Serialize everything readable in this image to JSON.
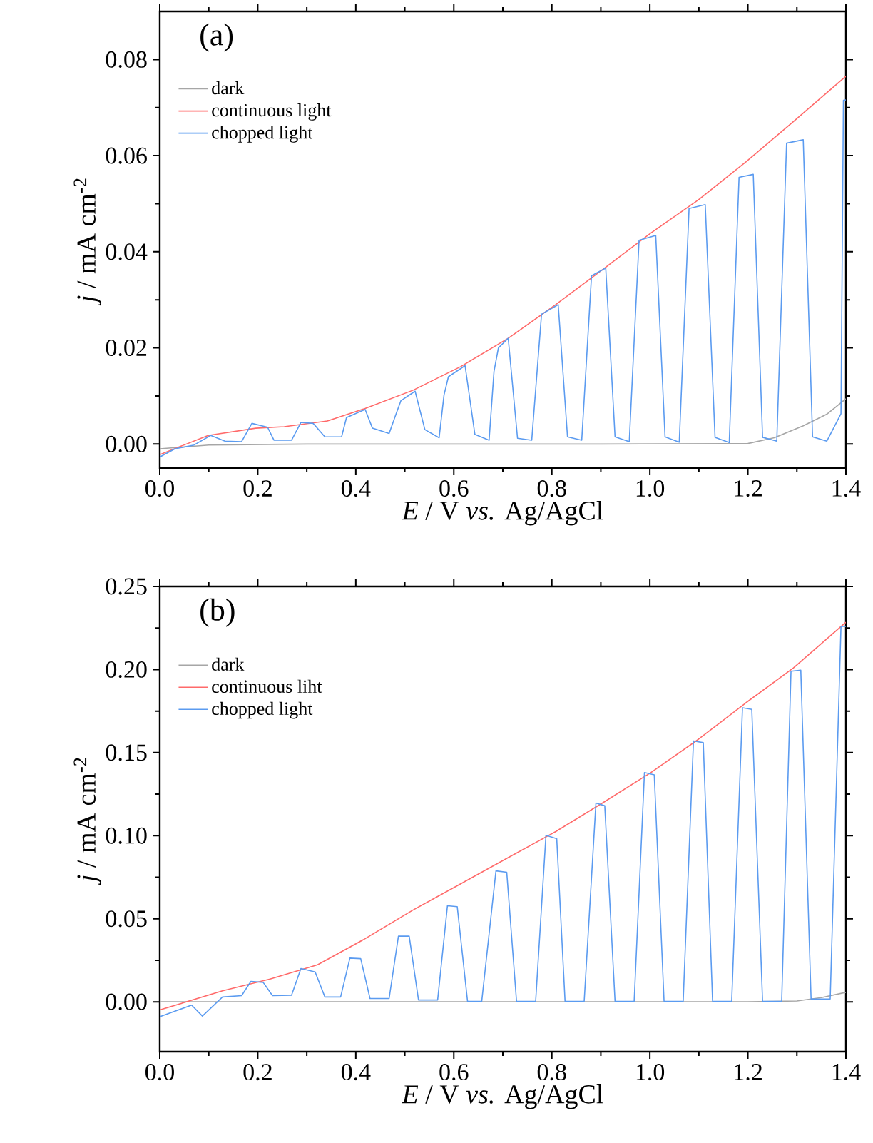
{
  "chart_data": [
    {
      "type": "line",
      "annotations": [
        "(a)"
      ],
      "xlabel": "*E* / V *vs.* Ag/AgCl",
      "ylabel": "*j* / mA cm$^{-2}$",
      "xlim": [
        0,
        1.4
      ],
      "ylim": [
        -0.005,
        0.09
      ],
      "xticks": [
        {
          "value": 0,
          "label": "0.0"
        },
        {
          "value": 0.2,
          "label": "0.2"
        },
        {
          "value": 0.4,
          "label": "0.4"
        },
        {
          "value": 0.6,
          "label": "0.6"
        },
        {
          "value": 0.8,
          "label": "0.8"
        },
        {
          "value": 1.0,
          "label": "1.0"
        },
        {
          "value": 1.2,
          "label": "1.2"
        },
        {
          "value": 1.4,
          "label": "1.4"
        }
      ],
      "yticks": [
        {
          "value": 0,
          "label": "0.00"
        },
        {
          "value": 0.02,
          "label": "0.02"
        },
        {
          "value": 0.04,
          "label": "0.04"
        },
        {
          "value": 0.06,
          "label": "0.06"
        },
        {
          "value": 0.08,
          "label": "0.08"
        }
      ],
      "legend": "top left",
      "grid": false,
      "series": [
        {
          "name": "dark",
          "color": "#a6a6a6",
          "x": [
            0,
            0.1,
            0.3,
            0.6,
            0.9,
            1.2,
            1.254,
            1.313,
            1.361,
            1.4
          ],
          "values": [
            -0.001,
            -0.0002,
            0,
            0,
            0,
            0.0001,
            0.0013,
            0.0038,
            0.0062,
            0.0094
          ]
        },
        {
          "name": "continuous light",
          "color": "#ff6a6a",
          "x": [
            0,
            0.099,
            0.196,
            0.254,
            0.342,
            0.419,
            0.517,
            0.614,
            0.711,
            0.808,
            0.905,
            1.002,
            1.099,
            1.196,
            1.293,
            1.4
          ],
          "values": [
            -0.0022,
            0.0018,
            0.0033,
            0.0036,
            0.0048,
            0.0074,
            0.0112,
            0.0161,
            0.022,
            0.029,
            0.0364,
            0.0439,
            0.0508,
            0.0587,
            0.0671,
            0.0765
          ]
        },
        {
          "name": "chopped light",
          "color": "#5b9bf0",
          "x": [
            0,
            0.031,
            0.07,
            0.104,
            0.133,
            0.167,
            0.188,
            0.22,
            0.233,
            0.269,
            0.288,
            0.313,
            0.337,
            0.371,
            0.381,
            0.419,
            0.434,
            0.468,
            0.483,
            0.492,
            0.521,
            0.541,
            0.57,
            0.58,
            0.589,
            0.623,
            0.643,
            0.672,
            0.682,
            0.691,
            0.711,
            0.73,
            0.759,
            0.779,
            0.813,
            0.832,
            0.861,
            0.881,
            0.91,
            0.929,
            0.958,
            0.978,
            1.012,
            1.031,
            1.06,
            1.08,
            1.113,
            1.133,
            1.162,
            1.182,
            1.211,
            1.23,
            1.259,
            1.279,
            1.313,
            1.332,
            1.361,
            1.39,
            1.395,
            1.4
          ],
          "values": [
            -0.0027,
            -0.001,
            -0.0002,
            0.0018,
            0.0006,
            0.0005,
            0.0043,
            0.0035,
            0.0008,
            0.0008,
            0.0045,
            0.0043,
            0.0015,
            0.0015,
            0.0055,
            0.0072,
            0.0033,
            0.0022,
            0.0065,
            0.009,
            0.011,
            0.003,
            0.0013,
            0.0102,
            0.014,
            0.0163,
            0.002,
            0.0008,
            0.0151,
            0.02,
            0.022,
            0.0012,
            0.0008,
            0.027,
            0.029,
            0.0015,
            0.0008,
            0.035,
            0.0366,
            0.0015,
            0.0005,
            0.0424,
            0.0434,
            0.0015,
            0.0004,
            0.049,
            0.0498,
            0.0014,
            0.0003,
            0.0555,
            0.0561,
            0.0014,
            0.0006,
            0.0626,
            0.0633,
            0.0015,
            0.0006,
            0.0063,
            0.0715,
            0.0716
          ]
        }
      ]
    },
    {
      "type": "line",
      "annotations": [
        "(b)"
      ],
      "xlabel": "*E* / V *vs.* Ag/AgCl",
      "ylabel": "*j* / mA cm$^{-2}$",
      "xlim": [
        0,
        1.4
      ],
      "ylim": [
        -0.03,
        0.25
      ],
      "xticks": [
        {
          "value": 0,
          "label": "0.0"
        },
        {
          "value": 0.2,
          "label": "0.2"
        },
        {
          "value": 0.4,
          "label": "0.4"
        },
        {
          "value": 0.6,
          "label": "0.6"
        },
        {
          "value": 0.8,
          "label": "0.8"
        },
        {
          "value": 1.0,
          "label": "1.0"
        },
        {
          "value": 1.2,
          "label": "1.2"
        },
        {
          "value": 1.4,
          "label": "1.4"
        }
      ],
      "yticks": [
        {
          "value": 0,
          "label": "0.00"
        },
        {
          "value": 0.05,
          "label": "0.05"
        },
        {
          "value": 0.1,
          "label": "0.10"
        },
        {
          "value": 0.15,
          "label": "0.15"
        },
        {
          "value": 0.2,
          "label": "0.20"
        },
        {
          "value": 0.25,
          "label": "0.25"
        }
      ],
      "legend": "top left",
      "grid": false,
      "series": [
        {
          "name": "dark",
          "color": "#a6a6a6",
          "x": [
            0,
            0.3,
            0.6,
            0.9,
            1.2,
            1.3,
            1.35,
            1.4
          ],
          "values": [
            0,
            0,
            0,
            0,
            0,
            0.0005,
            0.0025,
            0.0057
          ]
        },
        {
          "name": "continuous liht",
          "color": "#ff6a6a",
          "x": [
            0,
            0.128,
            0.225,
            0.322,
            0.419,
            0.517,
            0.614,
            0.711,
            0.808,
            0.905,
            1.002,
            1.099,
            1.196,
            1.293,
            1.4
          ],
          "values": [
            -0.0049,
            0.0066,
            0.0137,
            0.0223,
            0.038,
            0.0553,
            0.071,
            0.0868,
            0.1025,
            0.12,
            0.138,
            0.158,
            0.18,
            0.201,
            0.2285
          ]
        },
        {
          "name": "chopped light",
          "color": "#5b9bf0",
          "x": [
            0,
            0.065,
            0.087,
            0.128,
            0.167,
            0.186,
            0.211,
            0.23,
            0.269,
            0.288,
            0.317,
            0.337,
            0.369,
            0.388,
            0.41,
            0.429,
            0.468,
            0.487,
            0.509,
            0.528,
            0.567,
            0.587,
            0.607,
            0.628,
            0.657,
            0.686,
            0.708,
            0.728,
            0.767,
            0.788,
            0.81,
            0.827,
            0.866,
            0.89,
            0.908,
            0.929,
            0.968,
            0.989,
            1.009,
            1.029,
            1.068,
            1.089,
            1.109,
            1.128,
            1.167,
            1.189,
            1.208,
            1.23,
            1.269,
            1.288,
            1.308,
            1.329,
            1.368,
            1.39,
            1.4
          ],
          "values": [
            -0.009,
            -0.002,
            -0.0086,
            0.0029,
            0.0037,
            0.0123,
            0.0117,
            0.0037,
            0.004,
            0.02,
            0.018,
            0.0029,
            0.0029,
            0.0263,
            0.026,
            0.002,
            0.002,
            0.0395,
            0.0395,
            0.0011,
            0.0011,
            0.0578,
            0.0573,
            0.0003,
            0.0003,
            0.0788,
            0.078,
            0.0003,
            0.0003,
            0.1002,
            0.0982,
            0.0003,
            0.0003,
            0.1197,
            0.118,
            0.0003,
            0.0003,
            0.138,
            0.1366,
            0.0003,
            0.0003,
            0.157,
            0.156,
            0.0003,
            0.0003,
            0.177,
            0.176,
            0.0003,
            0.0003,
            0.199,
            0.1996,
            0.0017,
            0.0017,
            0.226,
            0.226
          ]
        }
      ]
    }
  ]
}
